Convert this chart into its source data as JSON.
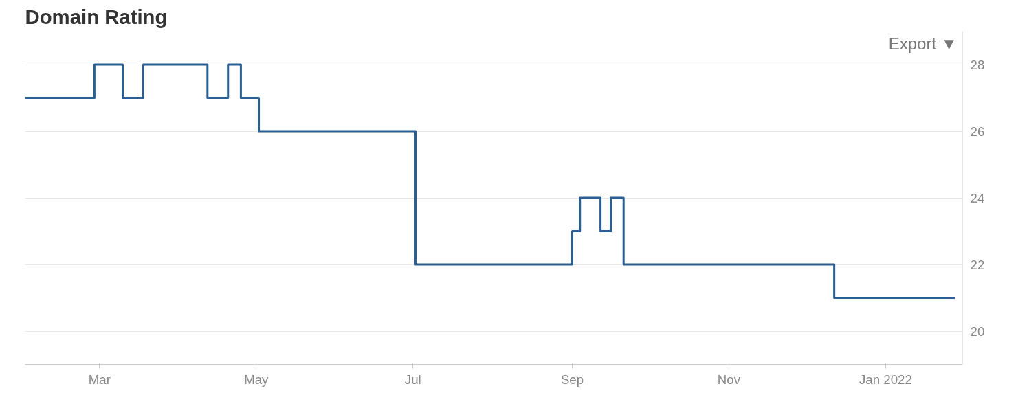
{
  "chart_data": {
    "type": "step",
    "title": "Domain Rating",
    "annotations": [
      "Export ▼"
    ],
    "x": [
      "2021-01-31",
      "2021-02-27",
      "2021-03-10",
      "2021-03-18",
      "2021-04-12",
      "2021-04-20",
      "2021-04-25",
      "2021-05-02",
      "2021-07-02",
      "2021-09-01",
      "2021-09-04",
      "2021-09-12",
      "2021-09-16",
      "2021-09-21",
      "2021-12-12",
      "2022-01-28"
    ],
    "series": [
      {
        "color": "#2a5f94",
        "values": [
          27,
          28,
          27,
          28,
          27,
          28,
          27,
          26,
          22,
          23,
          24,
          23,
          24,
          22,
          21,
          21
        ]
      }
    ],
    "xlim": [
      "2021-01-31",
      "2022-01-31"
    ],
    "xticks": [
      {
        "value": "2021-03-01",
        "label": "Mar"
      },
      {
        "value": "2021-05-01",
        "label": "May"
      },
      {
        "value": "2021-07-01",
        "label": "Jul"
      },
      {
        "value": "2021-09-01",
        "label": "Sep"
      },
      {
        "value": "2021-11-01",
        "label": "Nov"
      },
      {
        "value": "2022-01-01",
        "label": "Jan 2022"
      }
    ],
    "ylim": [
      19,
      29
    ],
    "yticks": [
      20,
      22,
      24,
      26,
      28
    ],
    "grid": "y",
    "line_style": "solid",
    "marker": "none"
  }
}
